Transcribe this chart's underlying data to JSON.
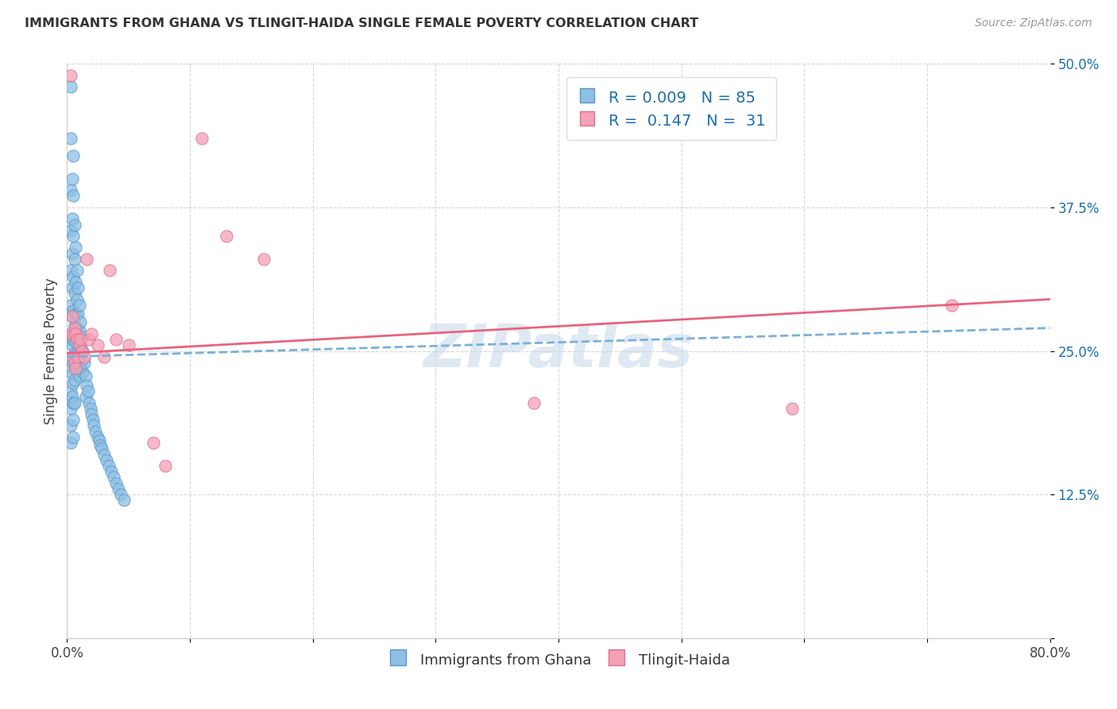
{
  "title": "IMMIGRANTS FROM GHANA VS TLINGIT-HAIDA SINGLE FEMALE POVERTY CORRELATION CHART",
  "source": "Source: ZipAtlas.com",
  "ylabel": "Single Female Poverty",
  "xlim": [
    0.0,
    0.8
  ],
  "ylim": [
    0.0,
    0.5
  ],
  "xticks": [
    0.0,
    0.1,
    0.2,
    0.3,
    0.4,
    0.5,
    0.6,
    0.7,
    0.8
  ],
  "xticklabels": [
    "0.0%",
    "",
    "",
    "",
    "",
    "",
    "",
    "",
    "80.0%"
  ],
  "yticks": [
    0.0,
    0.125,
    0.25,
    0.375,
    0.5
  ],
  "yticklabels": [
    "",
    "12.5%",
    "25.0%",
    "37.5%",
    "50.0%"
  ],
  "watermark": "ZIPatlas",
  "color_blue": "#8ec0e4",
  "color_pink": "#f4a0b5",
  "trendline_blue_color": "#7ab0d8",
  "trendline_pink_color": "#e8637e",
  "grid_color": "#d0d8e0",
  "background_color": "#ffffff",
  "ghana_x": [
    0.003,
    0.003,
    0.003,
    0.003,
    0.003,
    0.003,
    0.003,
    0.003,
    0.003,
    0.003,
    0.003,
    0.003,
    0.004,
    0.004,
    0.004,
    0.004,
    0.004,
    0.004,
    0.004,
    0.004,
    0.005,
    0.005,
    0.005,
    0.005,
    0.005,
    0.005,
    0.005,
    0.005,
    0.005,
    0.005,
    0.005,
    0.006,
    0.006,
    0.006,
    0.006,
    0.006,
    0.006,
    0.006,
    0.007,
    0.007,
    0.007,
    0.007,
    0.008,
    0.008,
    0.008,
    0.008,
    0.009,
    0.009,
    0.009,
    0.009,
    0.01,
    0.01,
    0.01,
    0.01,
    0.011,
    0.011,
    0.011,
    0.012,
    0.012,
    0.013,
    0.013,
    0.014,
    0.015,
    0.015,
    0.016,
    0.017,
    0.018,
    0.019,
    0.02,
    0.021,
    0.022,
    0.023,
    0.025,
    0.026,
    0.027,
    0.028,
    0.03,
    0.032,
    0.034,
    0.036,
    0.038,
    0.04,
    0.042,
    0.044,
    0.046
  ],
  "ghana_y": [
    0.48,
    0.435,
    0.39,
    0.355,
    0.32,
    0.29,
    0.26,
    0.235,
    0.215,
    0.2,
    0.185,
    0.17,
    0.4,
    0.365,
    0.335,
    0.305,
    0.28,
    0.255,
    0.23,
    0.21,
    0.42,
    0.385,
    0.35,
    0.315,
    0.285,
    0.26,
    0.24,
    0.222,
    0.205,
    0.19,
    0.175,
    0.36,
    0.33,
    0.3,
    0.272,
    0.248,
    0.225,
    0.205,
    0.34,
    0.31,
    0.282,
    0.258,
    0.32,
    0.295,
    0.27,
    0.248,
    0.305,
    0.282,
    0.26,
    0.24,
    0.29,
    0.268,
    0.248,
    0.228,
    0.275,
    0.255,
    0.235,
    0.262,
    0.242,
    0.25,
    0.232,
    0.24,
    0.228,
    0.21,
    0.22,
    0.215,
    0.205,
    0.2,
    0.195,
    0.19,
    0.185,
    0.18,
    0.175,
    0.172,
    0.168,
    0.165,
    0.16,
    0.155,
    0.15,
    0.145,
    0.14,
    0.135,
    0.13,
    0.125,
    0.12
  ],
  "tlingit_x": [
    0.003,
    0.003,
    0.004,
    0.005,
    0.005,
    0.006,
    0.006,
    0.007,
    0.007,
    0.008,
    0.009,
    0.01,
    0.011,
    0.012,
    0.014,
    0.016,
    0.018,
    0.02,
    0.025,
    0.03,
    0.035,
    0.04,
    0.05,
    0.07,
    0.08,
    0.11,
    0.13,
    0.16,
    0.38,
    0.59,
    0.72
  ],
  "tlingit_y": [
    0.49,
    0.265,
    0.28,
    0.265,
    0.245,
    0.27,
    0.24,
    0.265,
    0.235,
    0.26,
    0.245,
    0.255,
    0.26,
    0.25,
    0.245,
    0.33,
    0.26,
    0.265,
    0.255,
    0.245,
    0.32,
    0.26,
    0.255,
    0.17,
    0.15,
    0.435,
    0.35,
    0.33,
    0.205,
    0.2,
    0.29
  ]
}
